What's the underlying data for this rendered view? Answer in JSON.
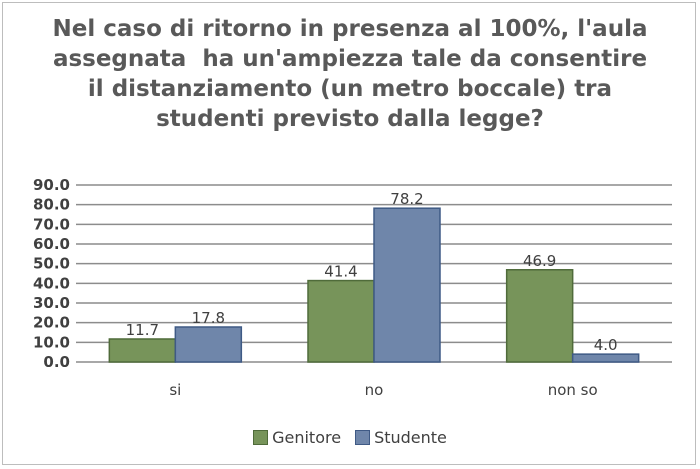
{
  "chart_data": {
    "type": "bar",
    "title_lines": [
      "Nel caso di ritorno in presenza al 100%, l'aula",
      "assegnata  ha un'ampiezza tale da consentire",
      "il distanziamento (un metro boccale) tra",
      "studenti previsto dalla legge?"
    ],
    "categories": [
      "si",
      "no",
      "non so"
    ],
    "series": [
      {
        "name": "Genitore",
        "values": [
          11.7,
          41.4,
          46.9
        ],
        "color": "#77945a",
        "stroke": "#4f6b3a"
      },
      {
        "name": "Studente",
        "values": [
          17.8,
          78.2,
          4.0
        ],
        "color": "#6f86aa",
        "stroke": "#3f5a85"
      }
    ],
    "ylim": [
      0,
      90
    ],
    "yticks": [
      0,
      10,
      20,
      30,
      40,
      50,
      60,
      70,
      80,
      90
    ],
    "ytick_decimals": 1,
    "grid": true,
    "legend_position": "bottom",
    "data_labels": true
  }
}
